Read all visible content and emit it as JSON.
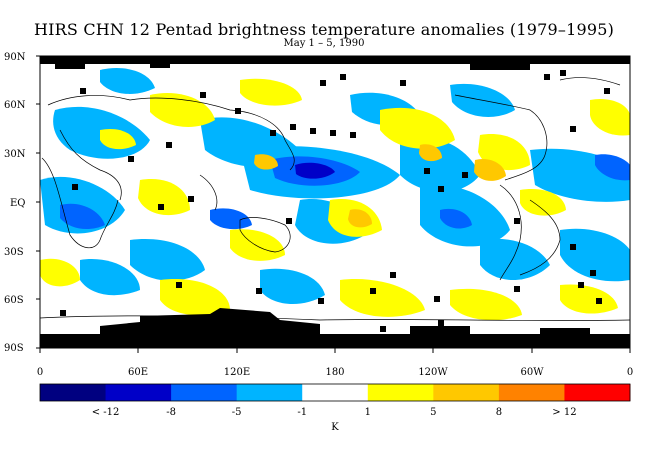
{
  "title": "HIRS CHN 12 Pentad brightness temperature anomalies (1979–1995)",
  "subtitle": "May 1 – 5, 1990",
  "map": {
    "lat_ticks": [
      "90N",
      "60N",
      "30N",
      "EQ",
      "30S",
      "60S",
      "90S"
    ],
    "lon_ticks": [
      "0",
      "60E",
      "120E",
      "180",
      "120W",
      "60W",
      "0"
    ]
  },
  "legend": {
    "unit": "K",
    "colors": [
      "#000080",
      "#0000c8",
      "#0064ff",
      "#00b4ff",
      "#ffffff",
      "#ffff00",
      "#ffc800",
      "#ff8200",
      "#ff0000"
    ],
    "labels": [
      "< -12",
      "-8",
      "-5",
      "-1",
      "1",
      "5",
      "8",
      "> 12"
    ]
  }
}
